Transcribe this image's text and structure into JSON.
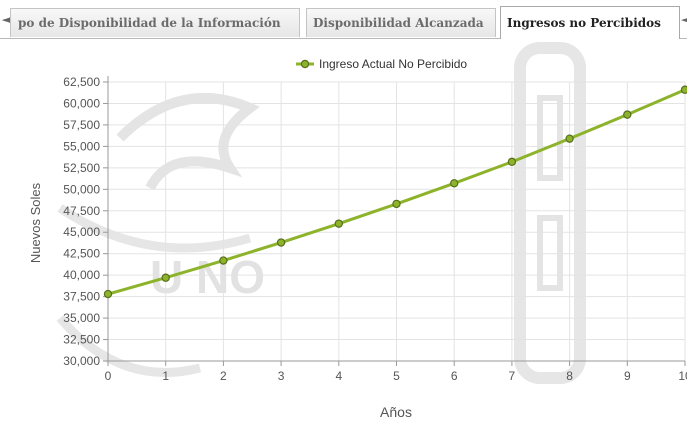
{
  "tabs": {
    "scroll_left_icon": "◄",
    "scroll_right_icon": "◄",
    "items": [
      {
        "label": "po de Disponibilidad de la Información",
        "active": false
      },
      {
        "label": "Disponibilidad Alcanzada",
        "active": false
      },
      {
        "label": "Ingresos no Percibidos",
        "active": true
      }
    ]
  },
  "colors": {
    "series": "#8db32b",
    "marker_stroke": "#556f1e",
    "grid": "#e3e3e3",
    "axis": "#999999",
    "text": "#555555",
    "watermark": "#dcdcdc"
  },
  "watermark_text": "U NO",
  "chart_data": {
    "type": "line",
    "xlabel": "Años",
    "ylabel": "Nuevos Soles",
    "legend_position": "top-center",
    "grid": true,
    "x": [
      0,
      1,
      2,
      3,
      4,
      5,
      6,
      7,
      8,
      9,
      10
    ],
    "xlim": [
      0,
      10
    ],
    "ylim": [
      30000,
      62500
    ],
    "yticks": [
      30000,
      32500,
      35000,
      37500,
      40000,
      42500,
      45000,
      47500,
      50000,
      52500,
      55000,
      57500,
      60000,
      62500
    ],
    "ytick_labels": [
      "30,000",
      "32,500",
      "35,000",
      "37,500",
      "40,000",
      "42,500",
      "45,000",
      "47,500",
      "50,000",
      "52,500",
      "55,000",
      "57,500",
      "60,000",
      "62,500"
    ],
    "xtick_labels": [
      "0",
      "1",
      "2",
      "3",
      "4",
      "5",
      "6",
      "7",
      "8",
      "9",
      "10"
    ],
    "series": [
      {
        "name": "Ingreso Actual No Percibido",
        "values": [
          37800,
          39700,
          41700,
          43800,
          46000,
          48300,
          50700,
          53200,
          55900,
          58700,
          61600
        ]
      }
    ]
  }
}
